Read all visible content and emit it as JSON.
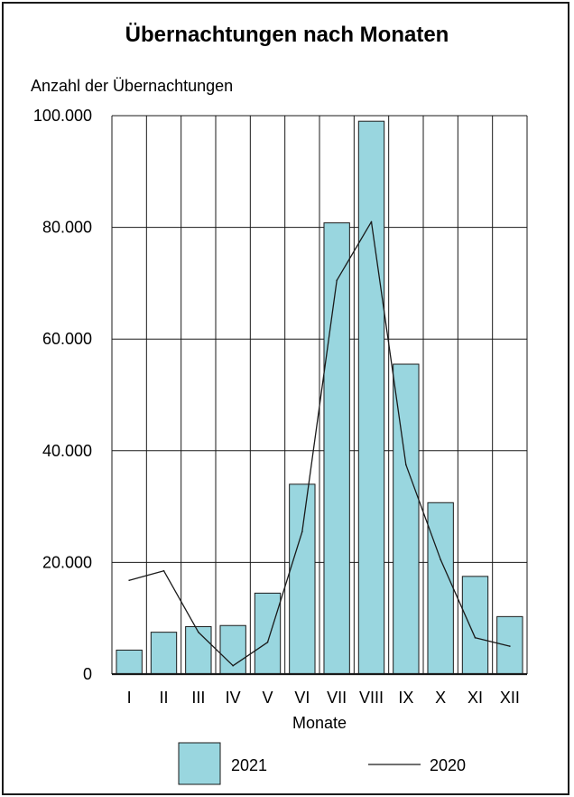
{
  "chart_data": {
    "type": "bar",
    "title": "Übernachtungen nach Monaten",
    "ylabel": "Anzahl der Übernachtungen",
    "xlabel": "Monate",
    "categories": [
      "I",
      "II",
      "III",
      "IV",
      "V",
      "VI",
      "VII",
      "VIII",
      "IX",
      "X",
      "XI",
      "XII"
    ],
    "ylim": [
      0,
      100000
    ],
    "yticks": [
      0,
      20000,
      40000,
      60000,
      80000,
      100000
    ],
    "ytick_labels": [
      "0",
      "20.000",
      "40.000",
      "60.000",
      "80.000",
      "100.000"
    ],
    "grid": true,
    "legend_position": "bottom",
    "series": [
      {
        "name": "2021",
        "kind": "bar",
        "values": [
          4300,
          7500,
          8500,
          8700,
          14500,
          34000,
          80800,
          99000,
          55500,
          30700,
          17500,
          10300
        ]
      },
      {
        "name": "2020",
        "kind": "line",
        "values": [
          16800,
          18500,
          7500,
          1500,
          5700,
          25500,
          70500,
          81000,
          37500,
          20500,
          6500,
          5000
        ]
      }
    ],
    "colors": {
      "bar_fill": "#99d6df",
      "bar_stroke": "#1a1a1a",
      "line": "#1a1a1a",
      "grid": "#1a1a1a"
    }
  }
}
